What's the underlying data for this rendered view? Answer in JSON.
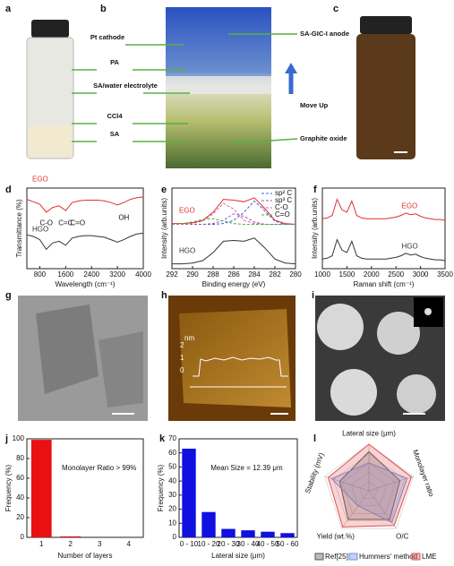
{
  "panel_labels": [
    "a",
    "b",
    "c",
    "d",
    "e",
    "f",
    "g",
    "h",
    "i",
    "j",
    "k",
    "l"
  ],
  "photo_labels": {
    "left": [
      "Pt cathode",
      "PA",
      "SA/water electrolyte",
      "CCl4",
      "SA"
    ],
    "right": [
      "SA-GIC-I anode",
      "Move Up",
      "Graphite oxide"
    ]
  },
  "afm_profile": {
    "unit": "nm",
    "ticks": [
      "2",
      "1",
      "0"
    ]
  },
  "chart_data": [
    {
      "type": "line",
      "xlabel": "Wavelength (cm⁻¹)",
      "ylabel": "Transmittance (%)",
      "x": [
        400,
        600,
        800,
        1000,
        1200,
        1400,
        1600,
        1800,
        2000,
        2200,
        2400,
        2600,
        2800,
        3000,
        3200,
        3400,
        3600,
        3800,
        4000
      ],
      "xlim": [
        400,
        4000
      ],
      "xticks": [
        800,
        1600,
        2400,
        3200,
        4000
      ],
      "ylim": [
        0,
        10
      ],
      "annotations": [
        "C-O",
        "C=C",
        "C=O",
        "OH"
      ],
      "series": [
        {
          "name": "EGO",
          "color": "#e03030",
          "values": [
            8.6,
            8.3,
            8.0,
            7.0,
            7.6,
            7.8,
            7.2,
            8.2,
            8.4,
            8.5,
            8.5,
            8.5,
            8.4,
            8.2,
            7.9,
            8.2,
            8.6,
            8.8,
            8.9
          ]
        },
        {
          "name": "HGO",
          "color": "#333333",
          "values": [
            4.2,
            4.0,
            3.6,
            2.4,
            3.2,
            3.4,
            2.9,
            3.8,
            4.0,
            4.1,
            4.1,
            4.0,
            3.9,
            3.6,
            3.3,
            3.6,
            4.0,
            4.3,
            4.4
          ]
        }
      ]
    },
    {
      "type": "line",
      "xlabel": "Binding energy (eV)",
      "ylabel": "Intensity (arb.units)",
      "x": [
        292,
        291,
        290,
        289,
        288,
        287,
        286,
        285,
        284,
        283,
        282,
        281,
        280
      ],
      "xlim": [
        292,
        280
      ],
      "xticks": [
        292,
        290,
        288,
        286,
        284,
        282,
        280
      ],
      "ylim": [
        0,
        10
      ],
      "series": [
        {
          "name": "EGO",
          "color": "#e03030",
          "values": [
            5.6,
            5.6,
            5.7,
            6.0,
            7.0,
            8.6,
            8.5,
            8.3,
            8.8,
            7.5,
            6.0,
            5.6,
            5.5
          ]
        },
        {
          "name": "HGO",
          "color": "#333333",
          "values": [
            0.6,
            0.6,
            0.7,
            1.0,
            2.0,
            3.4,
            3.5,
            3.4,
            3.8,
            2.6,
            1.2,
            0.7,
            0.6
          ]
        },
        {
          "name": "sp² C",
          "color": "#3a5fd0",
          "line_style": "dashed",
          "values": [
            5.5,
            5.5,
            5.5,
            5.5,
            5.5,
            5.6,
            6.0,
            7.0,
            8.4,
            7.2,
            5.9,
            5.5,
            5.5
          ]
        },
        {
          "name": "sp³ C",
          "color": "#9a4fc8",
          "line_style": "dashed",
          "values": [
            5.5,
            5.5,
            5.5,
            5.5,
            5.6,
            6.0,
            6.8,
            6.5,
            5.8,
            5.5,
            5.5,
            5.5,
            5.5
          ]
        },
        {
          "name": "C-O",
          "color": "#e060a0",
          "line_style": "dashed",
          "values": [
            5.5,
            5.5,
            5.6,
            5.9,
            6.8,
            8.1,
            7.4,
            6.0,
            5.6,
            5.5,
            5.5,
            5.5,
            5.5
          ]
        },
        {
          "name": "C=O",
          "color": "#40b040",
          "line_style": "dashed",
          "values": [
            5.5,
            5.6,
            5.8,
            6.1,
            6.2,
            5.9,
            5.6,
            5.5,
            5.5,
            5.5,
            5.5,
            5.5,
            5.5
          ]
        }
      ]
    },
    {
      "type": "line",
      "xlabel": "Raman shift (cm⁻¹)",
      "ylabel": "Intensity (arb.units)",
      "x": [
        1000,
        1100,
        1200,
        1300,
        1400,
        1500,
        1600,
        1700,
        1800,
        1900,
        2000,
        2100,
        2200,
        2300,
        2400,
        2500,
        2600,
        2700,
        2800,
        2900,
        3000,
        3100,
        3200,
        3300,
        3400,
        3500
      ],
      "xlim": [
        1000,
        3500
      ],
      "xticks": [
        1000,
        1500,
        2000,
        2500,
        3000,
        3500
      ],
      "ylim": [
        0,
        10
      ],
      "series": [
        {
          "name": "EGO",
          "color": "#e03030",
          "values": [
            6.2,
            6.3,
            6.6,
            8.6,
            7.3,
            7.0,
            8.4,
            6.6,
            6.3,
            6.2,
            6.2,
            6.2,
            6.2,
            6.2,
            6.3,
            6.4,
            6.6,
            6.9,
            6.7,
            6.8,
            6.5,
            6.3,
            6.2,
            6.1,
            6.1,
            6.0
          ]
        },
        {
          "name": "HGO",
          "color": "#333333",
          "values": [
            1.2,
            1.3,
            1.6,
            3.6,
            2.3,
            2.0,
            3.4,
            1.6,
            1.3,
            1.2,
            1.2,
            1.2,
            1.2,
            1.2,
            1.3,
            1.4,
            1.6,
            1.9,
            1.7,
            1.8,
            1.5,
            1.3,
            1.2,
            1.1,
            1.1,
            1.0
          ]
        }
      ]
    },
    {
      "type": "bar",
      "xlabel": "Number of layers",
      "ylabel": "Frequency (%)",
      "categories": [
        "1",
        "2",
        "3",
        "4"
      ],
      "values": [
        99,
        1,
        0,
        0
      ],
      "color": "#e81010",
      "ylim": [
        0,
        100
      ],
      "yticks": [
        0,
        20,
        40,
        60,
        80,
        100
      ],
      "annotation": "Monolayer Ratio > 99%"
    },
    {
      "type": "bar",
      "xlabel": "Lateral size (μm)",
      "ylabel": "Frequency (%)",
      "categories": [
        "0 - 10",
        "10 - 20",
        "20 - 30",
        "30 - 40",
        "40 - 50",
        "50 - 60"
      ],
      "values": [
        63,
        18,
        6,
        5,
        4,
        3
      ],
      "color": "#1010e0",
      "ylim": [
        0,
        70
      ],
      "yticks": [
        0,
        10,
        20,
        30,
        40,
        50,
        60,
        70
      ],
      "annotation": "Mean Size = 12.39 μm"
    },
    {
      "type": "radar",
      "axes": [
        "Lateral size (μm)",
        "Monolayer ratio",
        "O/C",
        "Yield (wt.%)",
        "Stability (mV)"
      ],
      "rlim": [
        0,
        5
      ],
      "legend": "bottom",
      "series": [
        {
          "name": "Ref[25]",
          "color": "#555555",
          "values": [
            4.2,
            3.5,
            3.8,
            3.8,
            3.3
          ]
        },
        {
          "name": "Hummers' method",
          "color": "#6a8fe0",
          "values": [
            3.0,
            4.3,
            4.2,
            2.0,
            4.2
          ]
        },
        {
          "name": "LME",
          "color": "#e05050",
          "values": [
            5.0,
            4.8,
            4.6,
            4.8,
            4.6
          ]
        }
      ]
    }
  ]
}
